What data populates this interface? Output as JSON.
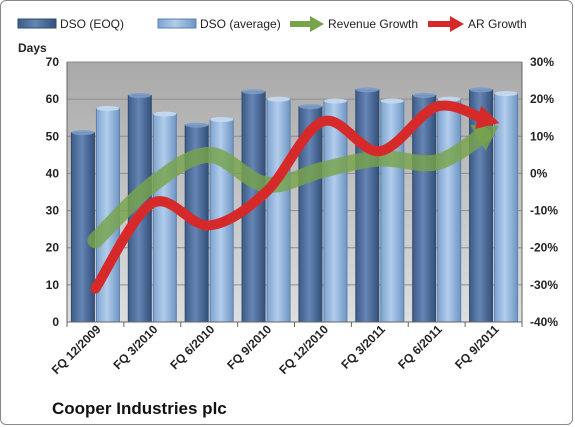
{
  "chart_data": {
    "type": "bar",
    "company": "Cooper Industries plc",
    "ylabel_left": "Days",
    "categories": [
      "FQ 12/2009",
      "FQ 3/2010",
      "FQ 6/2010",
      "FQ 9/2010",
      "FQ 12/2010",
      "FQ 3/2011",
      "FQ 6/2011",
      "FQ 9/2011"
    ],
    "left_axis": {
      "min": 0,
      "max": 70,
      "ticks": [
        "0",
        "10",
        "20",
        "30",
        "40",
        "50",
        "60",
        "70"
      ]
    },
    "right_axis": {
      "min": -40,
      "max": 30,
      "ticks": [
        "-40%",
        "-30%",
        "-20%",
        "-10%",
        "0%",
        "10%",
        "20%",
        "30%"
      ]
    },
    "series": [
      {
        "name": "DSO (EOQ)",
        "kind": "bar",
        "axis": "left",
        "color": "#4a6c9b",
        "values": [
          51,
          61,
          53,
          62,
          58,
          62.5,
          61,
          62.5
        ]
      },
      {
        "name": "DSO (average)",
        "kind": "bar",
        "axis": "left",
        "color": "#8fb4de",
        "values": [
          57.5,
          56,
          54.5,
          60,
          59.5,
          59.5,
          60,
          61.5
        ]
      },
      {
        "name": "Revenue Growth",
        "kind": "line",
        "axis": "right",
        "color": "#77a34b",
        "values": [
          -18,
          -3,
          5,
          -3,
          1,
          4,
          3,
          12
        ]
      },
      {
        "name": "AR Growth",
        "kind": "line",
        "axis": "right",
        "color": "#d62a2a",
        "values": [
          -31,
          -8,
          -14,
          -5,
          14,
          6,
          18,
          14
        ]
      }
    ],
    "grid": true,
    "legend_position": "top"
  }
}
